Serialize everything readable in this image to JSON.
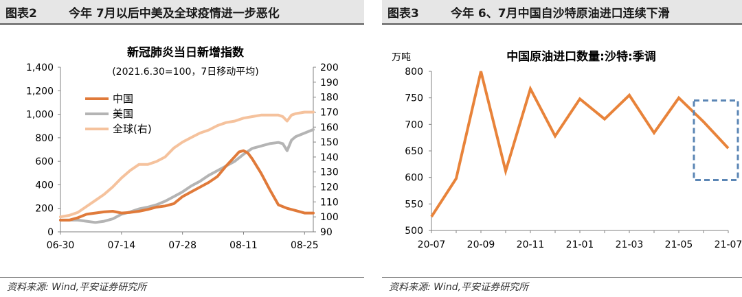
{
  "left": {
    "figure_num": "图表2",
    "figure_title": "今年 7月以后中美及全球疫情进一步恶化",
    "source": "资料来源: Wind,平安证券研究所"
  },
  "right": {
    "figure_num": "图表3",
    "figure_title": "今年 6、7月中国自沙特原油进口连续下滑",
    "source": "资料来源: Wind,平安证券研究所"
  },
  "colors": {
    "china": "#e07a3a",
    "us": "#b4b4b4",
    "global": "#f5c29d",
    "oil_line": "#e8833a",
    "highlight_box": "#5b86b5"
  },
  "chart_data": [
    {
      "type": "line",
      "title": "新冠肺炎当日新增指数",
      "subtitle": "(2021.6.30=100，7日移动平均)",
      "x_tick_labels": [
        "06-30",
        "07-14",
        "07-28",
        "08-11",
        "08-25"
      ],
      "x_ticks_day": [
        0,
        14,
        28,
        42,
        56
      ],
      "xlim": [
        0,
        58
      ],
      "ylim": [
        0,
        1400
      ],
      "yticks": [
        0,
        200,
        400,
        600,
        800,
        1000,
        1200,
        1400
      ],
      "ytick_labels": [
        "0",
        "200",
        "400",
        "600",
        "800",
        "1,000",
        "1,200",
        "1,400"
      ],
      "y2lim": [
        90,
        200
      ],
      "y2ticks": [
        90,
        100,
        110,
        120,
        130,
        140,
        150,
        160,
        170,
        180,
        190,
        200
      ],
      "legend_position": "upper-left",
      "series": [
        {
          "name": "中国",
          "axis": "left",
          "color_key": "china",
          "x": [
            0,
            2,
            4,
            6,
            8,
            10,
            12,
            14,
            16,
            18,
            20,
            22,
            24,
            26,
            28,
            30,
            32,
            34,
            36,
            38,
            40,
            41,
            42,
            43,
            44,
            46,
            48,
            50,
            52,
            54,
            56,
            58
          ],
          "y": [
            100,
            100,
            120,
            150,
            160,
            170,
            175,
            160,
            165,
            175,
            190,
            210,
            220,
            240,
            300,
            340,
            380,
            420,
            470,
            560,
            640,
            680,
            690,
            670,
            620,
            500,
            360,
            230,
            200,
            180,
            160,
            160
          ]
        },
        {
          "name": "美国",
          "axis": "left",
          "color_key": "us",
          "x": [
            0,
            2,
            4,
            6,
            8,
            10,
            12,
            14,
            16,
            18,
            20,
            22,
            24,
            26,
            28,
            30,
            32,
            34,
            36,
            38,
            40,
            42,
            44,
            46,
            48,
            50,
            51,
            52,
            53,
            54,
            56,
            58
          ],
          "y": [
            100,
            100,
            100,
            90,
            80,
            90,
            110,
            150,
            170,
            195,
            210,
            230,
            260,
            300,
            340,
            390,
            430,
            480,
            520,
            560,
            600,
            660,
            710,
            730,
            750,
            760,
            750,
            690,
            780,
            810,
            840,
            870
          ]
        },
        {
          "name": "全球(右)",
          "axis": "right",
          "color_key": "global",
          "x": [
            0,
            2,
            4,
            6,
            8,
            10,
            12,
            14,
            16,
            18,
            20,
            22,
            24,
            26,
            28,
            30,
            32,
            34,
            36,
            38,
            40,
            42,
            44,
            46,
            48,
            50,
            51,
            52,
            53,
            54,
            56,
            58
          ],
          "y": [
            100,
            101,
            103,
            107,
            111,
            115,
            120,
            126,
            131,
            135,
            135,
            137,
            140,
            146,
            150,
            153,
            156,
            158,
            161,
            163,
            164,
            166,
            167,
            168,
            168,
            168,
            167,
            164,
            168,
            169,
            170,
            170
          ]
        }
      ]
    },
    {
      "type": "line",
      "title": "中国原油进口数量:沙特:季调",
      "y_unit_label": "万吨",
      "categories": [
        "20-07",
        "20-08",
        "20-09",
        "20-10",
        "20-11",
        "20-12",
        "21-01",
        "21-02",
        "21-03",
        "21-04",
        "21-05",
        "21-06",
        "21-07"
      ],
      "values": [
        526,
        598,
        800,
        612,
        767,
        678,
        748,
        710,
        755,
        684,
        750,
        705,
        655
      ],
      "x_tick_labels": [
        "20-07",
        "20-09",
        "20-11",
        "21-01",
        "21-03",
        "21-05",
        "21-07"
      ],
      "ylim": [
        500,
        800
      ],
      "yticks": [
        500,
        550,
        600,
        650,
        700,
        750,
        800
      ],
      "series_name": "中国原油进口数量:沙特:季调",
      "color_key": "oil_line",
      "highlight": {
        "from": "21-06",
        "to": "21-07",
        "style": "dashed-box"
      }
    }
  ]
}
